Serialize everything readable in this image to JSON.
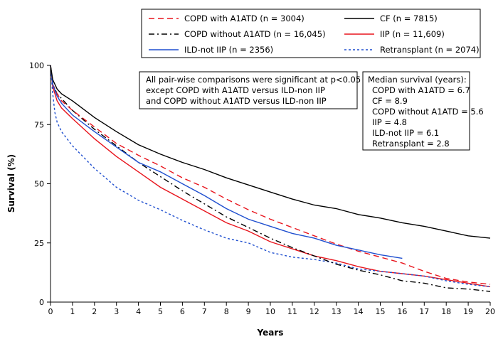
{
  "chart_data": {
    "type": "line",
    "xlabel": "Years",
    "ylabel": "Survival (%)",
    "xlim": [
      0,
      20
    ],
    "ylim": [
      0,
      100
    ],
    "xticks": [
      "0",
      "1",
      "2",
      "3",
      "4",
      "5",
      "6",
      "7",
      "8",
      "9",
      "10",
      "11",
      "12",
      "13",
      "14",
      "15",
      "16",
      "17",
      "18",
      "19",
      "20"
    ],
    "yticks": [
      "0",
      "25",
      "50",
      "75",
      "100"
    ],
    "grid": false,
    "legend_position": "top",
    "series": [
      {
        "name": "COPD with A1ATD (n = 3004)",
        "color": "#e8141c",
        "dash": "8,5",
        "x": [
          0,
          0.1,
          0.3,
          0.5,
          1,
          2,
          3,
          4,
          5,
          6,
          7,
          8,
          9,
          10,
          11,
          12,
          13,
          14,
          15,
          16,
          17,
          18,
          19,
          20
        ],
        "y": [
          100,
          92,
          88,
          85,
          81,
          74,
          67,
          62,
          57.5,
          52.5,
          48.5,
          43.5,
          39,
          35,
          31.5,
          28,
          24.5,
          21.5,
          19,
          16.5,
          13,
          10,
          8.5,
          7.5
        ]
      },
      {
        "name": "CF (n = 7815)",
        "color": "#000000",
        "dash": "",
        "x": [
          0,
          0.1,
          0.3,
          0.5,
          1,
          2,
          3,
          4,
          5,
          6,
          7,
          8,
          9,
          10,
          11,
          12,
          13,
          14,
          15,
          16,
          17,
          18,
          19,
          20
        ],
        "y": [
          100,
          94,
          90,
          88,
          85,
          78,
          72,
          66.5,
          62.5,
          59,
          56,
          52.5,
          49.5,
          46.5,
          43.5,
          41,
          39.5,
          37,
          35.5,
          33.5,
          32,
          30,
          28,
          27
        ]
      },
      {
        "name": "COPD without A1ATD (n = 16,045)",
        "color": "#000000",
        "dash": "8,4,2,4",
        "x": [
          0,
          0.1,
          0.3,
          0.5,
          1,
          2,
          3,
          4,
          5,
          6,
          7,
          8,
          9,
          10,
          11,
          12,
          13,
          14,
          15,
          16,
          17,
          18,
          19,
          20
        ],
        "y": [
          100,
          92,
          88,
          86,
          81,
          73,
          66,
          59,
          53,
          47,
          41.5,
          36,
          31.5,
          27,
          23,
          19.5,
          16,
          13.5,
          11.5,
          9,
          8,
          6,
          5.5,
          4.5
        ]
      },
      {
        "name": "IIP (n = 11,609)",
        "color": "#e8141c",
        "dash": "",
        "x": [
          0,
          0.1,
          0.3,
          0.5,
          1,
          2,
          3,
          4,
          5,
          6,
          7,
          8,
          9,
          10,
          11,
          12,
          13,
          14,
          15,
          16,
          17,
          18,
          19,
          20
        ],
        "y": [
          100,
          91,
          85,
          82,
          77.5,
          69,
          61.5,
          55,
          48.5,
          43.5,
          38.5,
          33.5,
          30,
          25.5,
          22.5,
          19.5,
          17.5,
          15,
          13,
          12,
          11,
          9.5,
          8,
          6.5
        ]
      },
      {
        "name": "ILD-not IIP (n = 2356)",
        "color": "#1f4fcf",
        "dash": "",
        "x": [
          0,
          0.1,
          0.3,
          0.5,
          1,
          2,
          3,
          4,
          5,
          6,
          7,
          8,
          9,
          10,
          11,
          12,
          13,
          14,
          15,
          16
        ],
        "y": [
          100,
          92,
          87,
          84,
          79,
          72,
          65.5,
          59,
          55,
          50,
          45,
          39.5,
          35,
          32,
          29,
          27,
          24,
          22,
          20,
          18.5
        ]
      },
      {
        "name": "Retransplant (n = 2074)",
        "color": "#1f4fcf",
        "dash": "3,3",
        "x": [
          0,
          0.1,
          0.2,
          0.3,
          0.5,
          1,
          2,
          3,
          4,
          5,
          6,
          7,
          8,
          9,
          10,
          11,
          12,
          13,
          14,
          15,
          16,
          17,
          18,
          19,
          20
        ],
        "y": [
          100,
          88,
          80,
          76,
          72,
          66,
          56.5,
          48.5,
          43,
          39,
          34.5,
          30.5,
          27,
          25,
          21,
          19,
          18,
          16.5,
          14,
          13,
          12,
          11,
          9,
          7.5,
          6.5
        ]
      }
    ],
    "annotations": {
      "significance": [
        "All pair-wise comparisons were significant at p<0.05",
        "except COPD with A1ATD versus ILD-non IIP",
        "and COPD without A1ATD versus ILD-non IIP"
      ],
      "median_title": "Median survival (years):",
      "median_lines": [
        "COPD with A1ATD = 6.7",
        "CF = 8.9",
        "COPD without A1ATD = 5.6",
        "IIP = 4.8",
        "ILD-not IIP = 6.1",
        "Retransplant = 2.8"
      ]
    }
  }
}
